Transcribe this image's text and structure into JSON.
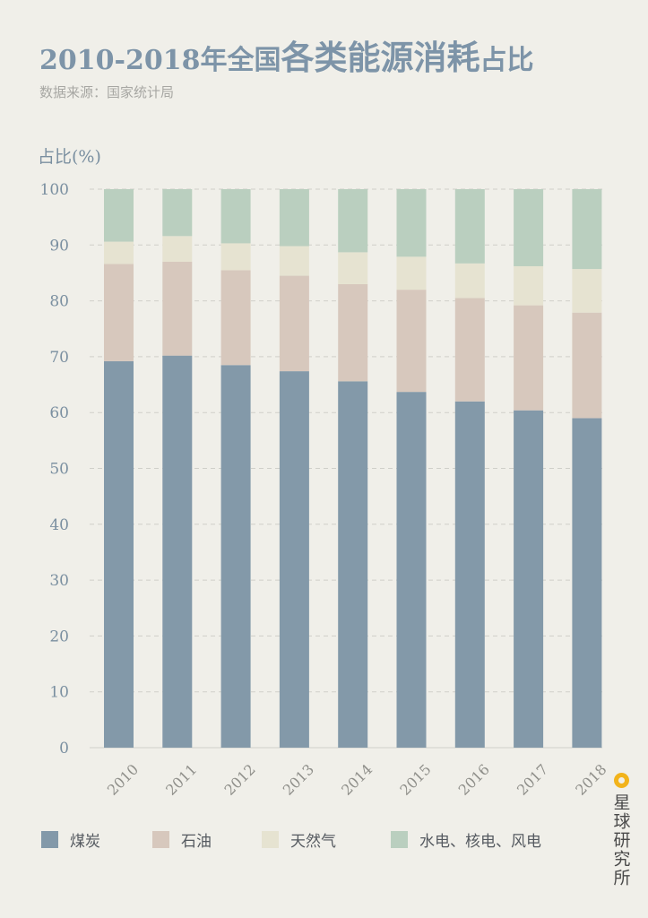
{
  "header": {
    "title_prefix": "2010-2018年全国",
    "title_emphasis": "各类能源消耗",
    "title_suffix": "占比",
    "subtitle": "数据来源：国家统计局"
  },
  "brand": {
    "text": "星球研究所",
    "color": "#f2b31b"
  },
  "chart_data": {
    "type": "bar",
    "stacked": true,
    "title": "2010-2018年全国各类能源消耗占比",
    "xlabel": "",
    "ylabel": "占比(%)",
    "ylim": [
      0,
      100
    ],
    "yticks": [
      0,
      10,
      20,
      30,
      40,
      50,
      60,
      70,
      80,
      90,
      100
    ],
    "grid": true,
    "legend_position": "bottom",
    "categories": [
      "2010",
      "2011",
      "2012",
      "2013",
      "2014",
      "2015",
      "2016",
      "2017",
      "2018"
    ],
    "series": [
      {
        "name": "煤炭",
        "color": "#8399a9",
        "values": [
          69.2,
          70.2,
          68.5,
          67.4,
          65.6,
          63.7,
          62.0,
          60.4,
          59.0
        ]
      },
      {
        "name": "石油",
        "color": "#d7c8bd",
        "values": [
          17.4,
          16.8,
          17.0,
          17.1,
          17.4,
          18.3,
          18.5,
          18.8,
          18.9
        ]
      },
      {
        "name": "天然气",
        "color": "#e6e3d1",
        "values": [
          4.0,
          4.6,
          4.8,
          5.3,
          5.7,
          5.9,
          6.2,
          7.0,
          7.8
        ]
      },
      {
        "name": "水电、核电、风电",
        "color": "#bacfbf",
        "values": [
          9.4,
          8.4,
          9.7,
          10.2,
          11.3,
          12.1,
          13.3,
          13.8,
          14.3
        ]
      }
    ]
  }
}
